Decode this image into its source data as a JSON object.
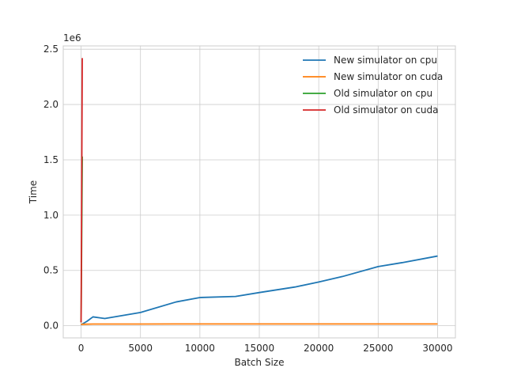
{
  "chart_data": {
    "type": "line",
    "title": "",
    "xlabel": "Batch Size",
    "ylabel": "Time",
    "y_offset_text": "1e6",
    "y_scale_factor": 1000000,
    "xlim": [
      -1500,
      31500
    ],
    "ylim": [
      -110000,
      2530000
    ],
    "x_ticks": [
      0,
      5000,
      10000,
      15000,
      20000,
      25000,
      30000
    ],
    "x_tick_labels": [
      "0",
      "5000",
      "10000",
      "15000",
      "20000",
      "25000",
      "30000"
    ],
    "y_ticks": [
      0,
      500000,
      1000000,
      1500000,
      2000000,
      2500000
    ],
    "y_tick_labels": [
      "0.0",
      "0.5",
      "1.0",
      "1.5",
      "2.0",
      "2.5"
    ],
    "grid": true,
    "legend_position": "top-right",
    "series": [
      {
        "name": "New simulator on cpu",
        "color": "#1f77b4",
        "x": [
          1,
          10,
          100,
          500,
          1000,
          2000,
          5000,
          8000,
          10000,
          13000,
          15000,
          18000,
          20000,
          22000,
          25000,
          27000,
          30000
        ],
        "y": [
          10000,
          10000,
          15000,
          40000,
          80000,
          65000,
          120000,
          215000,
          255000,
          265000,
          300000,
          350000,
          395000,
          445000,
          535000,
          570000,
          630000
        ]
      },
      {
        "name": "New simulator on cuda",
        "color": "#ff7f0e",
        "x": [
          1,
          10,
          100,
          500,
          1000,
          2000,
          5000,
          8000,
          10000,
          13000,
          15000,
          18000,
          20000,
          22000,
          25000,
          27000,
          30000
        ],
        "y": [
          10000,
          12000,
          13000,
          14000,
          15000,
          15000,
          15000,
          16000,
          16000,
          16000,
          16000,
          16000,
          16000,
          16000,
          16000,
          16000,
          16000
        ]
      },
      {
        "name": "Old simulator on cpu",
        "color": "#2ca02c",
        "x": [
          1,
          10,
          50,
          100
        ],
        "y": [
          30000,
          150000,
          760000,
          1530000
        ]
      },
      {
        "name": "Old simulator on cuda",
        "color": "#d62728",
        "x": [
          1,
          10,
          50,
          100
        ],
        "y": [
          30000,
          240000,
          1210000,
          2420000
        ]
      }
    ]
  }
}
